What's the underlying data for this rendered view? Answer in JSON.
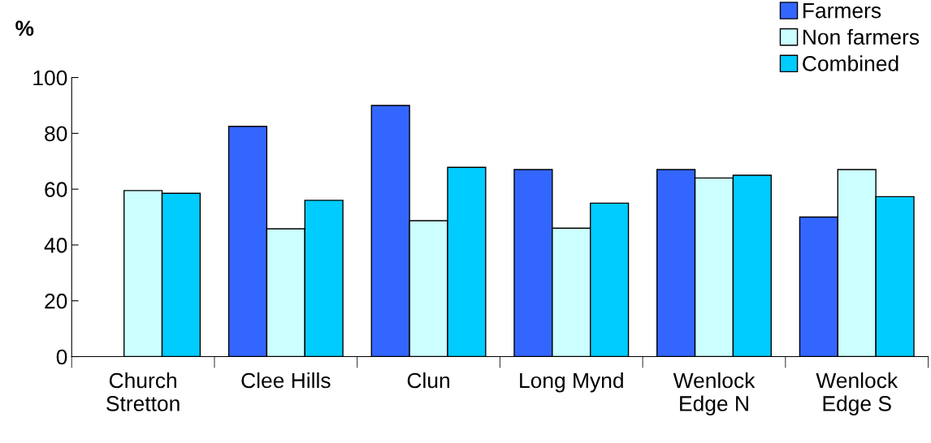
{
  "chart_data": {
    "type": "bar",
    "ylabel": "%",
    "categories": [
      "Church\nStretton",
      "Clee Hills",
      "Clun",
      "Long Mynd",
      "Wenlock\nEdge N",
      "Wenlock\nEdge S"
    ],
    "series": [
      {
        "name": "Farmers",
        "color": "#3366ff",
        "values": [
          null,
          82.5,
          90,
          67,
          67,
          50
        ]
      },
      {
        "name": "Non farmers",
        "color": "#ccffff",
        "values": [
          59.5,
          45.8,
          48.7,
          46,
          64,
          67
        ]
      },
      {
        "name": "Combined",
        "color": "#00ccff",
        "values": [
          58.5,
          56,
          67.8,
          55,
          65,
          57.3
        ]
      }
    ],
    "ylim": [
      0,
      100
    ],
    "yticks": [
      0,
      20,
      40,
      60,
      80,
      100
    ],
    "grid": false,
    "legend": "top right"
  }
}
